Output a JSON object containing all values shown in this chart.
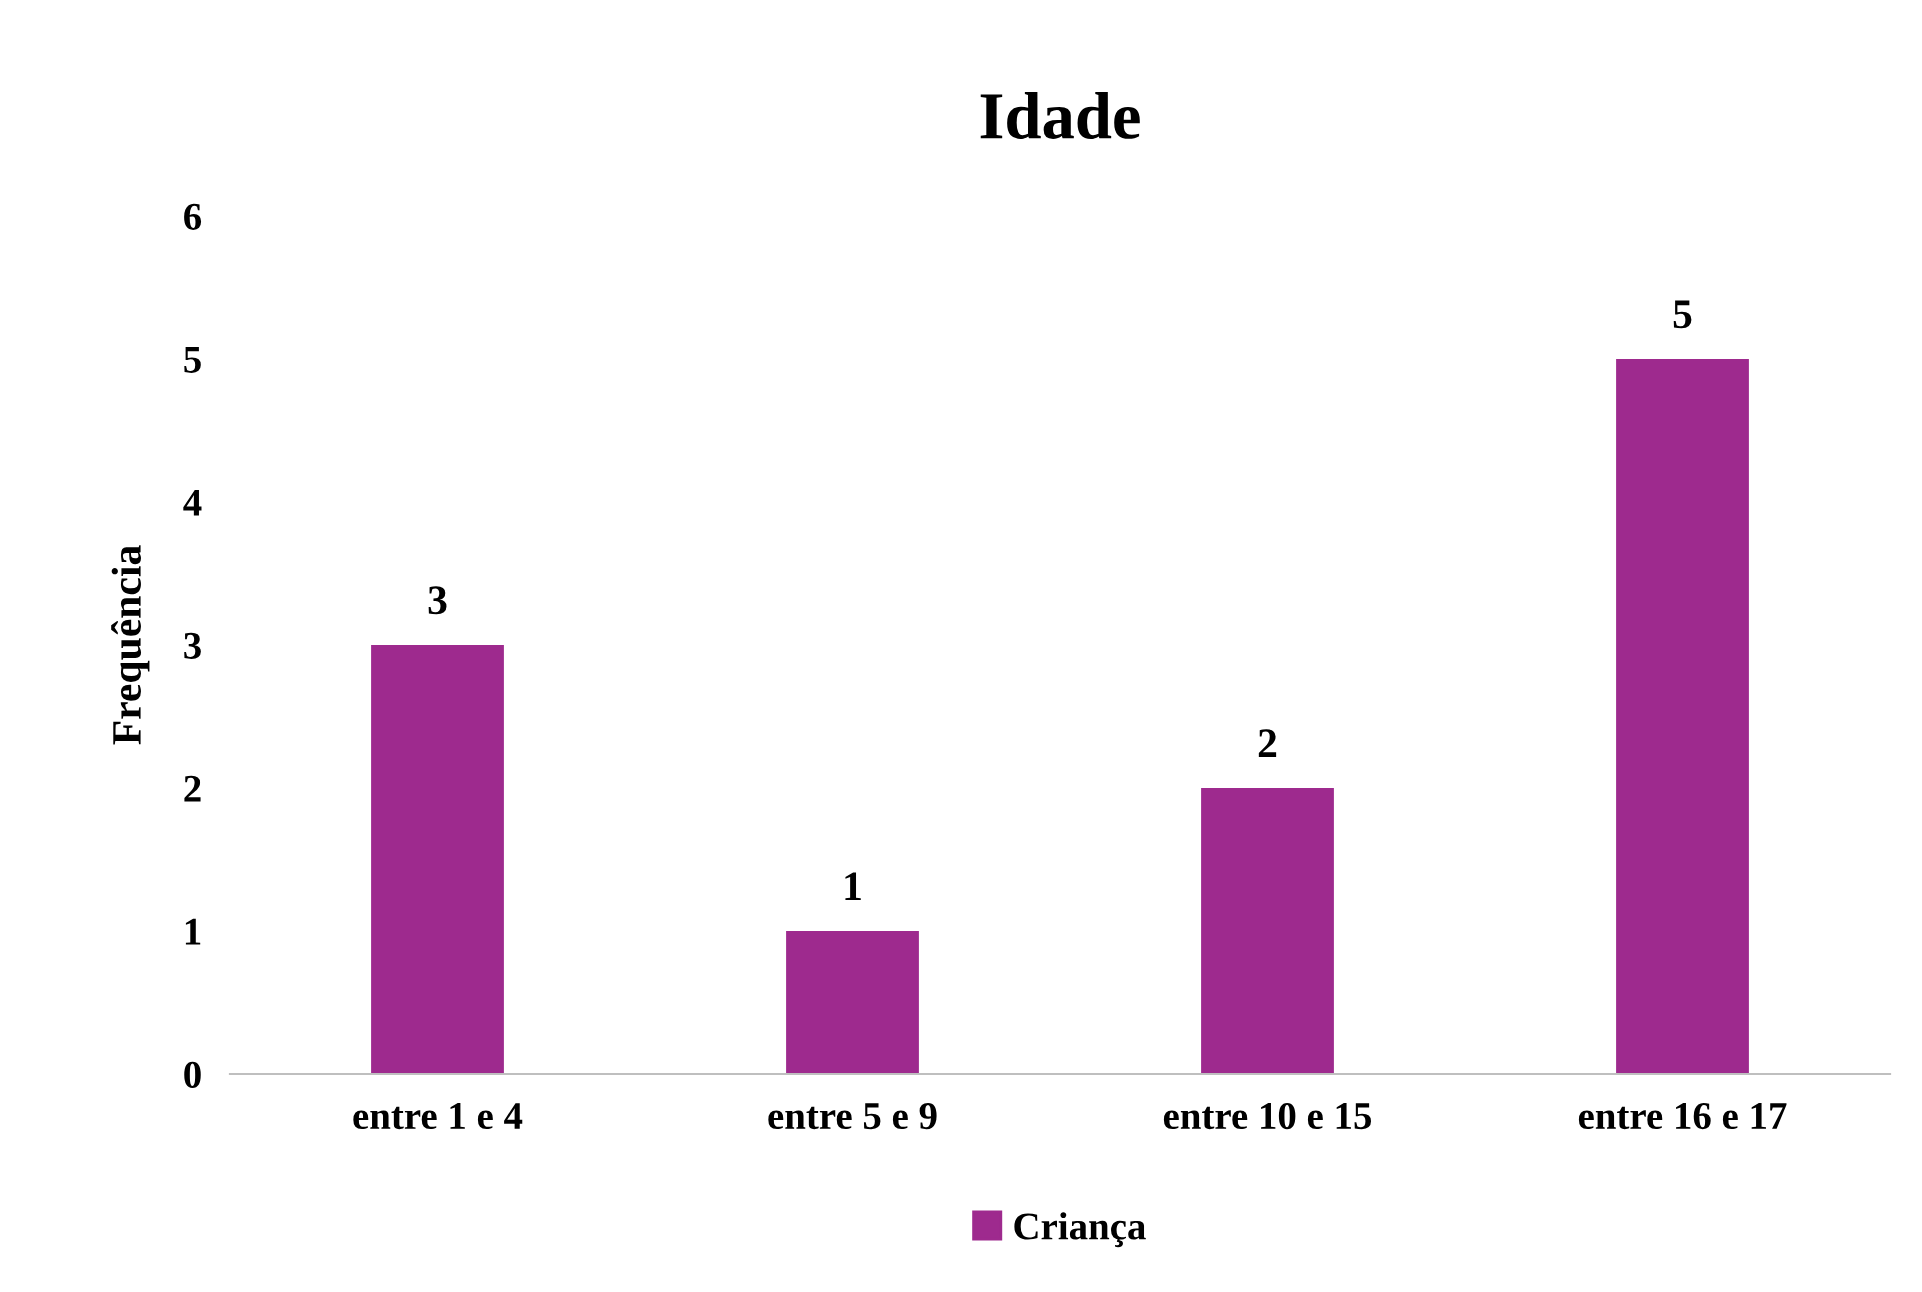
{
  "chart_data": {
    "type": "bar",
    "title": "Idade",
    "ylabel": "Frequência",
    "categories": [
      "entre 1 e 4",
      "entre 5 e 9",
      "entre 10 e 15",
      "entre 16 e 17"
    ],
    "series": [
      {
        "name": "Criança",
        "color": "#9e2a8e",
        "values": [
          3,
          1,
          2,
          5
        ]
      }
    ],
    "ylim": [
      0,
      6
    ],
    "yticks": [
      0,
      1,
      2,
      3,
      4,
      5,
      6
    ],
    "grid": false,
    "legend": "bottom",
    "data_labels": true
  }
}
